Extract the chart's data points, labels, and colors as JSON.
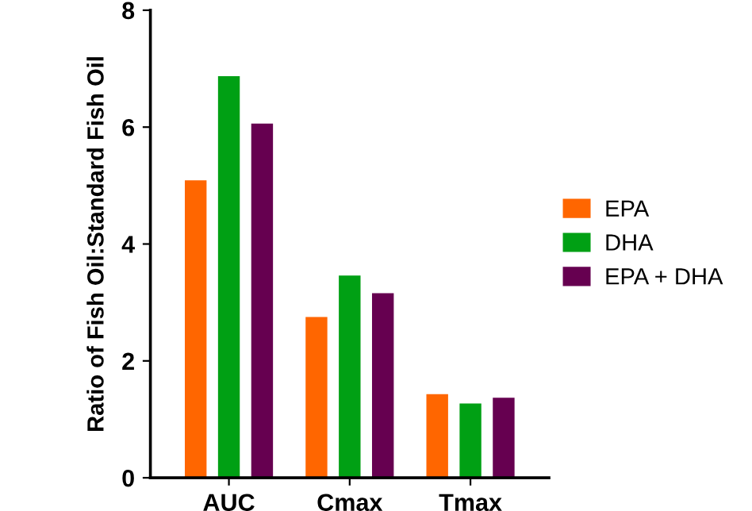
{
  "chart_data": {
    "type": "bar",
    "ylabel": "Ratio of Fish Oil:Standard Fish Oil",
    "categories": [
      "AUC",
      "Cmax",
      "Tmax"
    ],
    "series": [
      {
        "name": "EPA",
        "color": "#ff6600",
        "values": [
          5.09,
          2.75,
          1.43
        ]
      },
      {
        "name": "DHA",
        "color": "#00a014",
        "values": [
          6.87,
          3.46,
          1.27
        ]
      },
      {
        "name": "EPA + DHA",
        "color": "#660050",
        "values": [
          6.06,
          3.16,
          1.37
        ]
      }
    ],
    "ylim": [
      0,
      8
    ],
    "yticks": [
      0,
      2,
      4,
      6,
      8
    ],
    "grid": false,
    "legend": "right"
  }
}
